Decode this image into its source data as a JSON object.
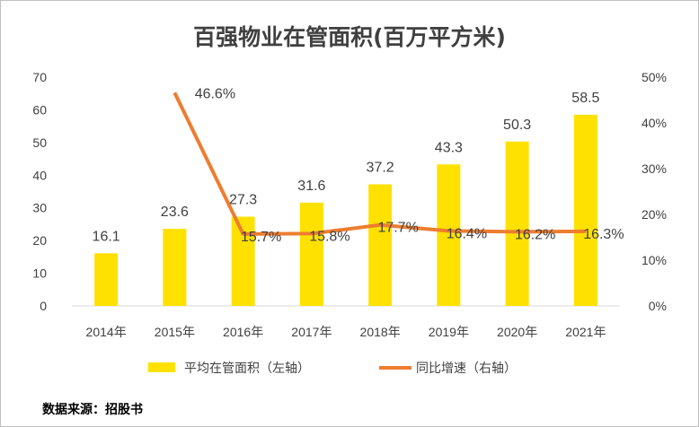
{
  "chart_data": {
    "type": "bar+line",
    "title": "百强物业在管面积(百万平方米)",
    "categories": [
      "2014年",
      "2015年",
      "2016年",
      "2017年",
      "2018年",
      "2019年",
      "2020年",
      "2021年"
    ],
    "series": [
      {
        "name": "平均在管面积（左轴）",
        "type": "bar",
        "axis": "left",
        "color": "#FFE100",
        "values": [
          16.1,
          23.6,
          27.3,
          31.6,
          37.2,
          43.3,
          50.3,
          58.5
        ],
        "labels": [
          "16.1",
          "23.6",
          "27.3",
          "31.6",
          "37.2",
          "43.3",
          "50.3",
          "58.5"
        ]
      },
      {
        "name": "同比增速（右轴）",
        "type": "line",
        "axis": "right",
        "color": "#ED7D31",
        "values": [
          null,
          46.6,
          15.7,
          15.8,
          17.7,
          16.4,
          16.2,
          16.3
        ],
        "labels": [
          "",
          "46.6%",
          "15.7%",
          "15.8%",
          "17.7%",
          "16.4%",
          "16.2%",
          "16.3%"
        ]
      }
    ],
    "y_left": {
      "min": 0,
      "max": 70,
      "ticks": [
        "0",
        "10",
        "20",
        "30",
        "40",
        "50",
        "60",
        "70"
      ]
    },
    "y_right": {
      "min": 0,
      "max": 50,
      "ticks": [
        "0%",
        "10%",
        "20%",
        "30%",
        "40%",
        "50%"
      ]
    },
    "legend_position": "bottom",
    "grid": false
  },
  "source": "数据来源：招股书"
}
